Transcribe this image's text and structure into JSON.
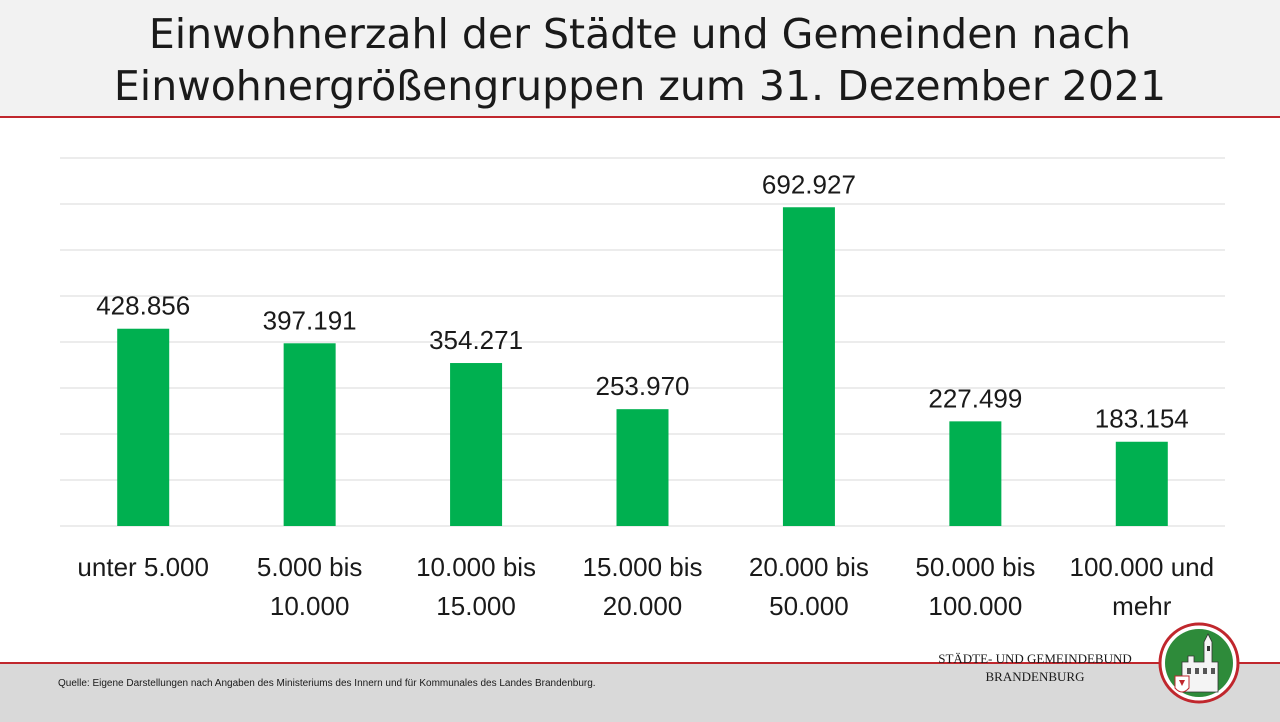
{
  "header": {
    "title_line1": "Einwohnerzahl der Städte und Gemeinden nach",
    "title_line2": "Einwohnergrößengruppen zum 31. Dezember 2021"
  },
  "footer": {
    "source": "Quelle:  Eigene Darstellungen nach Angaben des Ministeriums des Innern und für Kommunales des Landes Brandenburg.",
    "org_line1": "STÄDTE-  UND GEMEINDEBUND",
    "org_line2": "BRANDENBURG"
  },
  "logo": {
    "name": "staedte-und-gemeindebund-logo",
    "ring_color": "#c0272d",
    "field_color": "#2e8b3a"
  },
  "chart_data": {
    "type": "bar",
    "title": "",
    "xlabel": "",
    "ylabel": "",
    "ylim": [
      0,
      800000
    ],
    "grid": true,
    "bar_color": "#00b050",
    "categories": [
      [
        "unter 5.000"
      ],
      [
        "5.000 bis",
        "10.000"
      ],
      [
        "10.000 bis",
        "15.000"
      ],
      [
        "15.000 bis",
        "20.000"
      ],
      [
        "20.000 bis",
        "50.000"
      ],
      [
        "50.000 bis",
        "100.000"
      ],
      [
        "100.000 und",
        "mehr"
      ]
    ],
    "values": [
      428856,
      397191,
      354271,
      253970,
      692927,
      227499,
      183154
    ],
    "value_labels": [
      "428.856",
      "397.191",
      "354.271",
      "253.970",
      "692.927",
      "227.499",
      "183.154"
    ]
  }
}
